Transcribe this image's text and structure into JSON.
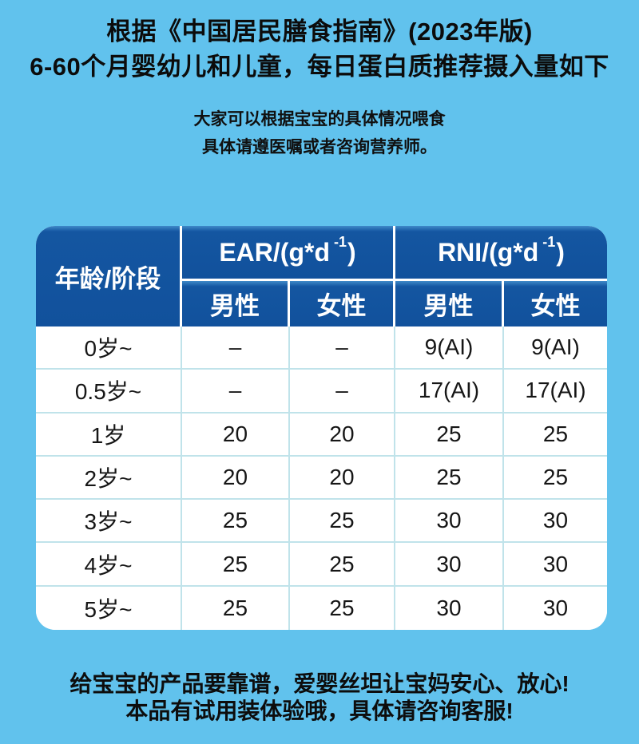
{
  "page": {
    "title_line1": "根据《中国居民膳食指南》(2023年版)",
    "title_line2": "6-60个月婴幼儿和儿童，每日蛋白质推荐摄入量如下",
    "note_line1": "大家可以根据宝宝的具体情况喂食",
    "note_line2": "具体请遵医嘱或者咨询营养师。",
    "footer_line1": "给宝宝的产品要靠谱，爱婴丝坦让宝妈安心、放心!",
    "footer_line2": "本品有试用装体验哦，具体请咨询客服!"
  },
  "colors": {
    "background": "#61c2ed",
    "header_blue": "#1456a1",
    "header_blue_highlight": "#3f8ac9",
    "header_separator": "#ffffff",
    "body_separator": "#c0e3ea",
    "body_background": "#ffffff",
    "text_dark": "#121212",
    "text_white": "#ffffff"
  },
  "table": {
    "corner_header": "年龄/阶段",
    "group_headers": [
      {
        "base": "EAR/(g*d",
        "sup": "-1",
        "close": ")"
      },
      {
        "base": "RNI/(g*d",
        "sup": "-1",
        "close": ")"
      }
    ],
    "sub_headers": [
      "男性",
      "女性",
      "男性",
      "女性"
    ],
    "rows": [
      [
        "0岁~",
        "–",
        "–",
        "9(AI)",
        "9(AI)"
      ],
      [
        "0.5岁~",
        "–",
        "–",
        "17(AI)",
        "17(AI)"
      ],
      [
        "1岁",
        "20",
        "20",
        "25",
        "25"
      ],
      [
        "2岁~",
        "20",
        "20",
        "25",
        "25"
      ],
      [
        "3岁~",
        "25",
        "25",
        "30",
        "30"
      ],
      [
        "4岁~",
        "25",
        "25",
        "30",
        "30"
      ],
      [
        "5岁~",
        "25",
        "25",
        "30",
        "30"
      ]
    ]
  }
}
